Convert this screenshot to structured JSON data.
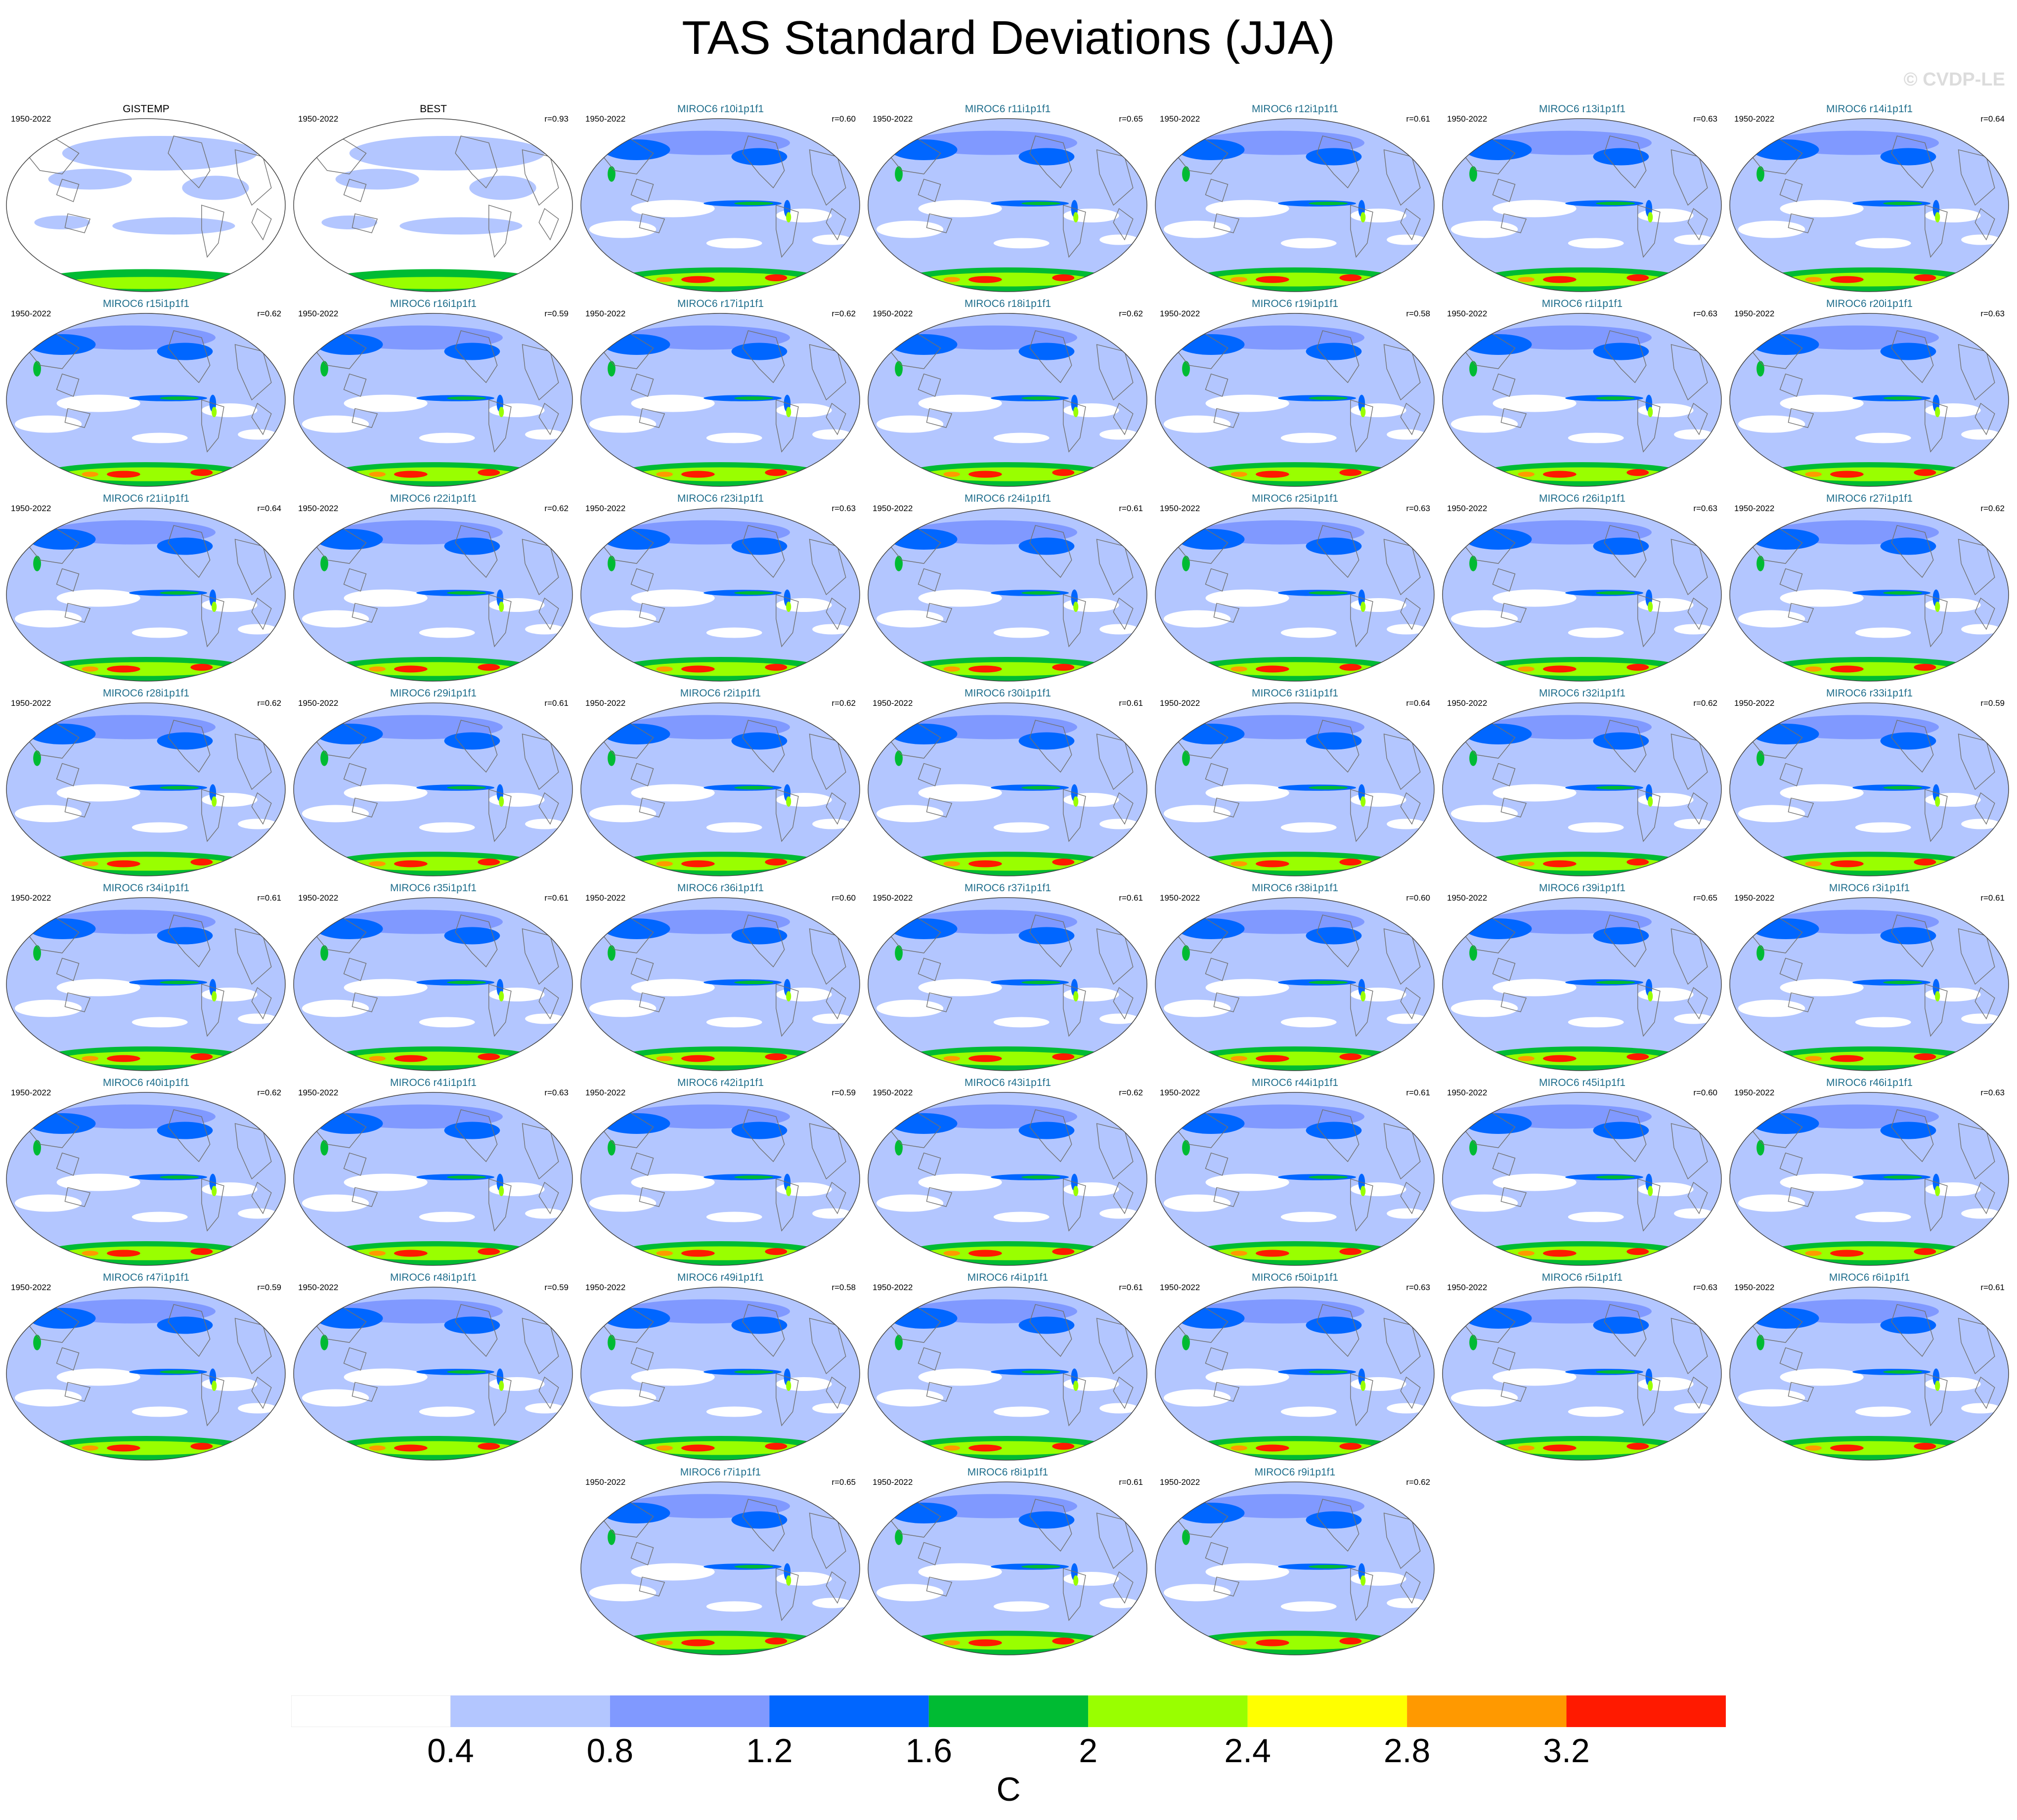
{
  "title": "TAS Standard Deviations (JJA)",
  "credit": "© CVDP-LE",
  "period": "1950-2022",
  "panels": [
    {
      "title": "GISTEMP",
      "corr": "",
      "obs": true
    },
    {
      "title": "BEST",
      "corr": "r=0.93",
      "obs": true
    },
    {
      "title": "MIROC6 r10i1p1f1",
      "corr": "r=0.60"
    },
    {
      "title": "MIROC6 r11i1p1f1",
      "corr": "r=0.65"
    },
    {
      "title": "MIROC6 r12i1p1f1",
      "corr": "r=0.61"
    },
    {
      "title": "MIROC6 r13i1p1f1",
      "corr": "r=0.63"
    },
    {
      "title": "MIROC6 r14i1p1f1",
      "corr": "r=0.64"
    },
    {
      "title": "MIROC6 r15i1p1f1",
      "corr": "r=0.62"
    },
    {
      "title": "MIROC6 r16i1p1f1",
      "corr": "r=0.59"
    },
    {
      "title": "MIROC6 r17i1p1f1",
      "corr": "r=0.62"
    },
    {
      "title": "MIROC6 r18i1p1f1",
      "corr": "r=0.62"
    },
    {
      "title": "MIROC6 r19i1p1f1",
      "corr": "r=0.58"
    },
    {
      "title": "MIROC6 r1i1p1f1",
      "corr": "r=0.63"
    },
    {
      "title": "MIROC6 r20i1p1f1",
      "corr": "r=0.63"
    },
    {
      "title": "MIROC6 r21i1p1f1",
      "corr": "r=0.64"
    },
    {
      "title": "MIROC6 r22i1p1f1",
      "corr": "r=0.62"
    },
    {
      "title": "MIROC6 r23i1p1f1",
      "corr": "r=0.63"
    },
    {
      "title": "MIROC6 r24i1p1f1",
      "corr": "r=0.61"
    },
    {
      "title": "MIROC6 r25i1p1f1",
      "corr": "r=0.63"
    },
    {
      "title": "MIROC6 r26i1p1f1",
      "corr": "r=0.63"
    },
    {
      "title": "MIROC6 r27i1p1f1",
      "corr": "r=0.62"
    },
    {
      "title": "MIROC6 r28i1p1f1",
      "corr": "r=0.62"
    },
    {
      "title": "MIROC6 r29i1p1f1",
      "corr": "r=0.61"
    },
    {
      "title": "MIROC6 r2i1p1f1",
      "corr": "r=0.62"
    },
    {
      "title": "MIROC6 r30i1p1f1",
      "corr": "r=0.61"
    },
    {
      "title": "MIROC6 r31i1p1f1",
      "corr": "r=0.64"
    },
    {
      "title": "MIROC6 r32i1p1f1",
      "corr": "r=0.62"
    },
    {
      "title": "MIROC6 r33i1p1f1",
      "corr": "r=0.59"
    },
    {
      "title": "MIROC6 r34i1p1f1",
      "corr": "r=0.61"
    },
    {
      "title": "MIROC6 r35i1p1f1",
      "corr": "r=0.61"
    },
    {
      "title": "MIROC6 r36i1p1f1",
      "corr": "r=0.60"
    },
    {
      "title": "MIROC6 r37i1p1f1",
      "corr": "r=0.61"
    },
    {
      "title": "MIROC6 r38i1p1f1",
      "corr": "r=0.60"
    },
    {
      "title": "MIROC6 r39i1p1f1",
      "corr": "r=0.65"
    },
    {
      "title": "MIROC6 r3i1p1f1",
      "corr": "r=0.61"
    },
    {
      "title": "MIROC6 r40i1p1f1",
      "corr": "r=0.62"
    },
    {
      "title": "MIROC6 r41i1p1f1",
      "corr": "r=0.63"
    },
    {
      "title": "MIROC6 r42i1p1f1",
      "corr": "r=0.59"
    },
    {
      "title": "MIROC6 r43i1p1f1",
      "corr": "r=0.62"
    },
    {
      "title": "MIROC6 r44i1p1f1",
      "corr": "r=0.61"
    },
    {
      "title": "MIROC6 r45i1p1f1",
      "corr": "r=0.60"
    },
    {
      "title": "MIROC6 r46i1p1f1",
      "corr": "r=0.63"
    },
    {
      "title": "MIROC6 r47i1p1f1",
      "corr": "r=0.59"
    },
    {
      "title": "MIROC6 r48i1p1f1",
      "corr": "r=0.59"
    },
    {
      "title": "MIROC6 r49i1p1f1",
      "corr": "r=0.58"
    },
    {
      "title": "MIROC6 r4i1p1f1",
      "corr": "r=0.61"
    },
    {
      "title": "MIROC6 r50i1p1f1",
      "corr": "r=0.63"
    },
    {
      "title": "MIROC6 r5i1p1f1",
      "corr": "r=0.63"
    },
    {
      "title": "MIROC6 r6i1p1f1",
      "corr": "r=0.61"
    },
    {
      "title": "MIROC6 r7i1p1f1",
      "corr": "r=0.65"
    },
    {
      "title": "MIROC6 r8i1p1f1",
      "corr": "r=0.61"
    },
    {
      "title": "MIROC6 r9i1p1f1",
      "corr": "r=0.62"
    }
  ],
  "colorbar": {
    "colors": [
      "#ffffff",
      "#b3c6ff",
      "#8099ff",
      "#0066ff",
      "#00bb33",
      "#99ff00",
      "#ffff00",
      "#ff9900",
      "#ff1a00"
    ],
    "ticks": [
      "0.4",
      "0.8",
      "1.2",
      "1.6",
      "2",
      "2.4",
      "2.8",
      "3.2"
    ],
    "units": "C"
  }
}
